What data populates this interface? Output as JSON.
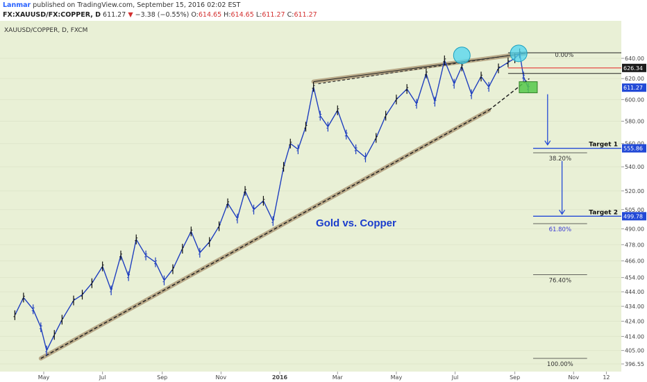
{
  "header": {
    "author": "Lanmar",
    "published_text": "published on TradingView.com, September 15, 2016 02:02 EST",
    "symbol": "FX:XAUUSD/FX:COPPER, D",
    "last": "611.27",
    "change_arrow": "▼",
    "change": "−3.38 (−0.55%)",
    "o_label": "O:",
    "o_value": "614.65",
    "h_label": "H:",
    "h_value": "614.65",
    "l_label": "L:",
    "l_value": "611.27",
    "c_label": "C:",
    "c_value": "611.27"
  },
  "chart_data": {
    "type": "line",
    "legend": "XAUUSD/COPPER, D, FXCM",
    "annotation": "Gold vs. Copper",
    "x_ticks": [
      "May",
      "Jul",
      "Sep",
      "Nov",
      "2016",
      "Mar",
      "May",
      "Jul",
      "Sep",
      "Nov",
      "12"
    ],
    "y_ticks": [
      "640.00",
      "620.00",
      "600.00",
      "580.00",
      "560.00",
      "540.00",
      "520.00",
      "505.00",
      "490.00",
      "478.00",
      "466.00",
      "454.00",
      "444.00",
      "434.00",
      "424.00",
      "414.00",
      "405.00",
      "396.55"
    ],
    "y_scale": "log",
    "ylim": [
      393,
      662
    ],
    "price_labels": [
      {
        "text": "626.34",
        "value": 626.34,
        "style": "dark"
      },
      {
        "text": "611.27",
        "value": 611.27,
        "style": "blue"
      },
      {
        "text": "555.86",
        "value": 555.86,
        "style": "blue"
      },
      {
        "text": "499.78",
        "value": 499.78,
        "style": "blue"
      }
    ],
    "fib_levels": [
      {
        "label": "0.00%",
        "value": 640.0
      },
      {
        "label": "38.20%",
        "value": 552.0
      },
      {
        "label": "61.80%",
        "value": 494.0
      },
      {
        "label": "76.40%",
        "value": 456.0
      },
      {
        "label": "100.00%",
        "value": 400.0
      }
    ],
    "targets": [
      {
        "label": "Target 1",
        "value": 555.86
      },
      {
        "label": "Target 2",
        "value": 499.78
      }
    ],
    "series": [
      {
        "x": [
          "2015-04-01",
          "2015-04-10",
          "2015-04-20",
          "2015-04-28",
          "2015-05-04",
          "2015-05-12",
          "2015-05-20",
          "2015-06-01",
          "2015-06-10",
          "2015-06-20",
          "2015-07-01",
          "2015-07-10",
          "2015-07-20",
          "2015-07-28",
          "2015-08-05",
          "2015-08-15",
          "2015-08-25",
          "2015-09-03",
          "2015-09-12",
          "2015-09-22",
          "2015-10-01",
          "2015-10-10",
          "2015-10-20",
          "2015-10-30",
          "2015-11-08",
          "2015-11-18",
          "2015-11-26",
          "2015-12-05",
          "2015-12-15",
          "2015-12-25",
          "2016-01-05",
          "2016-01-12",
          "2016-01-20",
          "2016-01-28",
          "2016-02-05",
          "2016-02-12",
          "2016-02-20",
          "2016-03-01",
          "2016-03-10",
          "2016-03-20",
          "2016-03-30",
          "2016-04-10",
          "2016-04-20",
          "2016-05-01",
          "2016-05-12",
          "2016-05-22",
          "2016-06-01",
          "2016-06-10",
          "2016-06-20",
          "2016-06-30",
          "2016-07-08",
          "2016-07-18",
          "2016-07-28",
          "2016-08-05",
          "2016-08-15",
          "2016-08-25",
          "2016-09-01",
          "2016-09-06",
          "2016-09-10",
          "2016-09-15"
        ],
        "values": [
          428,
          440,
          432,
          420,
          405,
          415,
          425,
          438,
          442,
          450,
          462,
          445,
          470,
          455,
          482,
          470,
          465,
          452,
          460,
          475,
          488,
          472,
          480,
          492,
          510,
          498,
          520,
          505,
          512,
          496,
          540,
          560,
          555,
          575,
          612,
          585,
          575,
          590,
          568,
          555,
          548,
          565,
          585,
          600,
          610,
          596,
          625,
          598,
          638,
          615,
          632,
          605,
          622,
          612,
          630,
          636,
          640,
          645,
          622,
          611
        ]
      }
    ]
  }
}
